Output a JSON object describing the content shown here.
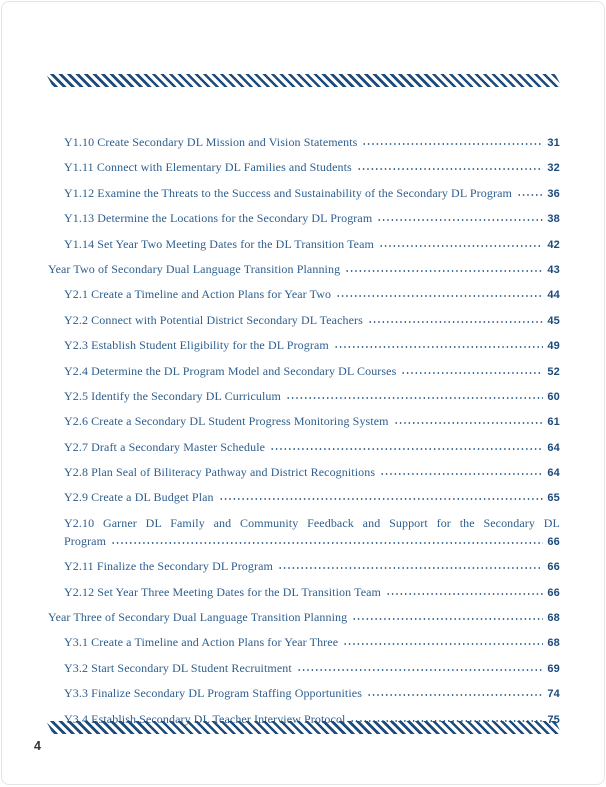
{
  "page": {
    "footer_page_number": "4"
  },
  "colors": {
    "stripe_band": "#1d4b7c",
    "entry_text": "#2d5e8e",
    "page_number": "#1c4a7a",
    "footer_number": "#333333"
  },
  "toc": {
    "entries": [
      {
        "indent": 1,
        "text": "Y1.10 Create Secondary DL Mission and Vision Statements",
        "page": "31"
      },
      {
        "indent": 1,
        "text": "Y1.11 Connect with Elementary DL Families and Students",
        "page": "32"
      },
      {
        "indent": 1,
        "text": "Y1.12 Examine the Threats to the Success and Sustainability of the Secondary DL Program",
        "page": "36"
      },
      {
        "indent": 1,
        "text": "Y1.13 Determine the Locations for the Secondary DL Program",
        "page": "38"
      },
      {
        "indent": 1,
        "text": "Y1.14 Set Year Two Meeting Dates for the DL Transition Team",
        "page": "42"
      },
      {
        "indent": 0,
        "text": "Year Two of Secondary Dual Language Transition Planning",
        "page": "43"
      },
      {
        "indent": 1,
        "text": "Y2.1 Create a Timeline and Action Plans for Year Two",
        "page": "44"
      },
      {
        "indent": 1,
        "text": "Y2.2 Connect with Potential District Secondary DL Teachers",
        "page": "45"
      },
      {
        "indent": 1,
        "text": "Y2.3 Establish Student Eligibility for the DL Program",
        "page": "49"
      },
      {
        "indent": 1,
        "text": "Y2.4 Determine the DL Program Model and Secondary DL Courses",
        "page": "52"
      },
      {
        "indent": 1,
        "text": "Y2.5 Identify the Secondary DL Curriculum",
        "page": "60"
      },
      {
        "indent": 1,
        "text": "Y2.6 Create a Secondary DL Student Progress Monitoring System",
        "page": "61"
      },
      {
        "indent": 1,
        "text": "Y2.7 Draft a Secondary Master Schedule",
        "page": "64"
      },
      {
        "indent": 1,
        "text": "Y2.8 Plan Seal of Biliteracy Pathway and District Recognitions",
        "page": "64"
      },
      {
        "indent": 1,
        "text": "Y2.9 Create a DL Budget Plan",
        "page": "65"
      },
      {
        "indent": 1,
        "text": "Y2.10 Garner DL Family and Community Feedback and Support for the Secondary DL",
        "text2": "Program",
        "page": "66"
      },
      {
        "indent": 1,
        "text": "Y2.11 Finalize the Secondary DL Program",
        "page": "66"
      },
      {
        "indent": 1,
        "text": "Y2.12 Set Year Three Meeting Dates for the DL Transition Team",
        "page": "66"
      },
      {
        "indent": 0,
        "text": "Year Three of Secondary Dual Language Transition Planning",
        "page": "68"
      },
      {
        "indent": 1,
        "text": "Y3.1 Create a Timeline and Action Plans for Year Three",
        "page": "68"
      },
      {
        "indent": 1,
        "text": "Y3.2 Start Secondary DL Student Recruitment",
        "page": "69"
      },
      {
        "indent": 1,
        "text": "Y3.3 Finalize Secondary DL Program Staffing Opportunities",
        "page": "74"
      },
      {
        "indent": 1,
        "text": "Y3.4 Establish Secondary DL Teacher Interview Protocol",
        "page": "75"
      }
    ]
  }
}
